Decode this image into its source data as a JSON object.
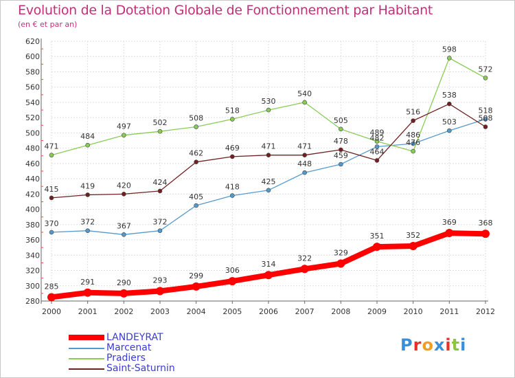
{
  "header": {
    "title": "Evolution de la Dotation Globale de Fonctionnement par Habitant",
    "subtitle": "(en € et par an)"
  },
  "logo": {
    "text": "Proxiti",
    "colors": [
      "#3a8fd6",
      "#e8302a",
      "#f0a020",
      "#3a8fd6",
      "#e8302a",
      "#8cc63f",
      "#3a8fd6"
    ]
  },
  "chart_data": {
    "type": "line",
    "x": [
      "2000",
      "2001",
      "2002",
      "2003",
      "2004",
      "2005",
      "2006",
      "2007",
      "2008",
      "2009",
      "2010",
      "2011",
      "2012"
    ],
    "ylim": [
      280,
      620
    ],
    "yticks": [
      280,
      300,
      320,
      340,
      360,
      380,
      400,
      420,
      440,
      460,
      480,
      500,
      520,
      540,
      560,
      580,
      600,
      620
    ],
    "grid": true,
    "legend_position": "bottom-left",
    "series": [
      {
        "name": "LANDEYRAT",
        "color": "#ff0000",
        "values": [
          285,
          291,
          290,
          293,
          299,
          306,
          314,
          322,
          329,
          351,
          352,
          369,
          368
        ],
        "thick": true
      },
      {
        "name": "Marcenat",
        "color": "#5599cc",
        "values": [
          370,
          372,
          367,
          372,
          405,
          418,
          425,
          448,
          459,
          482,
          486,
          503,
          518
        ],
        "thick": false
      },
      {
        "name": "Pradiers",
        "color": "#88cc55",
        "values": [
          471,
          484,
          497,
          502,
          508,
          518,
          530,
          540,
          505,
          489,
          476,
          598,
          572
        ],
        "thick": false
      },
      {
        "name": "Saint-Saturnin",
        "color": "#702020",
        "values": [
          415,
          419,
          420,
          424,
          462,
          469,
          471,
          471,
          478,
          464,
          516,
          538,
          508
        ],
        "thick": false
      }
    ]
  }
}
